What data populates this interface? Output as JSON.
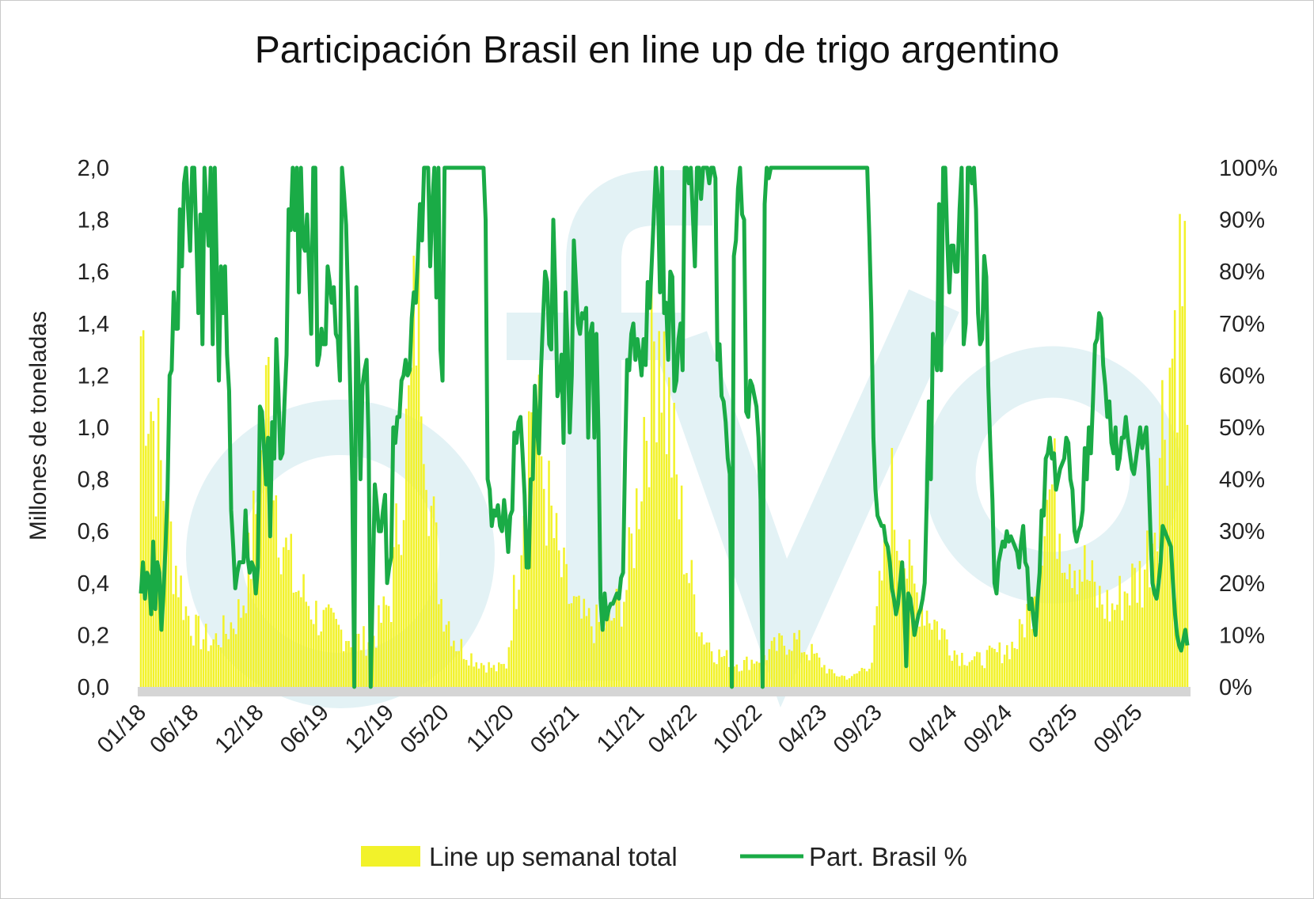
{
  "colors": {
    "bars": "#f2f22a",
    "line": "#1aab46",
    "baseline": "#d5d5d5",
    "watermark": "#e3f2f5"
  },
  "chart_data": {
    "type": "bar+line",
    "title": "Participación Brasil en line up de trigo argentino",
    "ylabel_left": "Millones de toneladas",
    "ylim_left": [
      0,
      2.0
    ],
    "yticks_left": [
      "0,0",
      "0,2",
      "0,4",
      "0,6",
      "0,8",
      "1,0",
      "1,2",
      "1,4",
      "1,6",
      "1,8",
      "2,0"
    ],
    "ylim_right": [
      0,
      100
    ],
    "yticks_right": [
      "0%",
      "10%",
      "20%",
      "30%",
      "40%",
      "50%",
      "60%",
      "70%",
      "80%",
      "90%",
      "100%"
    ],
    "xticks": [
      {
        "label": "01/18",
        "index": 0
      },
      {
        "label": "06/18",
        "index": 21
      },
      {
        "label": "12/18",
        "index": 47
      },
      {
        "label": "06/19",
        "index": 73
      },
      {
        "label": "12/19",
        "index": 99
      },
      {
        "label": "05/20",
        "index": 121
      },
      {
        "label": "11/20",
        "index": 147
      },
      {
        "label": "05/21",
        "index": 173
      },
      {
        "label": "11/21",
        "index": 199
      },
      {
        "label": "04/22",
        "index": 220
      },
      {
        "label": "10/22",
        "index": 246
      },
      {
        "label": "04/23",
        "index": 272
      },
      {
        "label": "09/23",
        "index": 294
      },
      {
        "label": "04/24",
        "index": 324
      },
      {
        "label": "09/24",
        "index": 346
      },
      {
        "label": "03/25",
        "index": 372
      },
      {
        "label": "09/25",
        "index": 398
      }
    ],
    "n_weeks": 419,
    "series": [
      {
        "name": "Line up semanal total",
        "type": "bar",
        "axis": "left",
        "unit": "millones de toneladas",
        "anchors": [
          [
            0,
            1.6
          ],
          [
            2,
            1.5
          ],
          [
            4,
            1.3
          ],
          [
            6,
            1.1
          ],
          [
            9,
            0.9
          ],
          [
            13,
            0.6
          ],
          [
            18,
            0.35
          ],
          [
            22,
            0.25
          ],
          [
            28,
            0.2
          ],
          [
            34,
            0.25
          ],
          [
            40,
            0.35
          ],
          [
            44,
            0.6
          ],
          [
            48,
            1.0
          ],
          [
            51,
            1.35
          ],
          [
            54,
            0.9
          ],
          [
            58,
            0.6
          ],
          [
            62,
            0.45
          ],
          [
            66,
            0.4
          ],
          [
            72,
            0.3
          ],
          [
            80,
            0.25
          ],
          [
            88,
            0.2
          ],
          [
            94,
            0.25
          ],
          [
            100,
            0.4
          ],
          [
            104,
            0.9
          ],
          [
            108,
            1.3
          ],
          [
            110,
            1.8
          ],
          [
            113,
            1.5
          ],
          [
            116,
            0.8
          ],
          [
            120,
            0.4
          ],
          [
            126,
            0.2
          ],
          [
            134,
            0.12
          ],
          [
            142,
            0.08
          ],
          [
            146,
            0.1
          ],
          [
            150,
            0.5
          ],
          [
            153,
            0.9
          ],
          [
            156,
            1.3
          ],
          [
            159,
            1.1
          ],
          [
            163,
            0.8
          ],
          [
            167,
            0.55
          ],
          [
            171,
            0.4
          ],
          [
            176,
            0.3
          ],
          [
            182,
            0.28
          ],
          [
            188,
            0.3
          ],
          [
            194,
            0.45
          ],
          [
            198,
            0.8
          ],
          [
            201,
            1.2
          ],
          [
            204,
            1.45
          ],
          [
            207,
            1.75
          ],
          [
            210,
            1.3
          ],
          [
            214,
            0.9
          ],
          [
            219,
            0.5
          ],
          [
            224,
            0.25
          ],
          [
            230,
            0.15
          ],
          [
            240,
            0.1
          ],
          [
            250,
            0.15
          ],
          [
            260,
            0.22
          ],
          [
            268,
            0.15
          ],
          [
            276,
            0.06
          ],
          [
            284,
            0.04
          ],
          [
            292,
            0.12
          ],
          [
            296,
            0.5
          ],
          [
            300,
            0.85
          ],
          [
            303,
            0.7
          ],
          [
            308,
            0.45
          ],
          [
            314,
            0.35
          ],
          [
            320,
            0.25
          ],
          [
            326,
            0.15
          ],
          [
            334,
            0.12
          ],
          [
            342,
            0.15
          ],
          [
            350,
            0.2
          ],
          [
            356,
            0.4
          ],
          [
            360,
            0.8
          ],
          [
            364,
            0.9
          ],
          [
            370,
            0.65
          ],
          [
            376,
            0.55
          ],
          [
            382,
            0.4
          ],
          [
            388,
            0.35
          ],
          [
            394,
            0.45
          ],
          [
            400,
            0.5
          ],
          [
            404,
            0.7
          ],
          [
            408,
            1.2
          ],
          [
            411,
            1.45
          ],
          [
            414,
            1.75
          ],
          [
            417,
            1.85
          ],
          [
            418,
            1.0
          ]
        ]
      },
      {
        "name": "Part. Brasil %",
        "type": "line",
        "axis": "right",
        "unit": "%",
        "values": [
          18,
          24,
          17,
          22,
          21,
          14,
          28,
          15,
          24,
          22,
          11,
          18,
          27,
          38,
          60,
          61,
          76,
          69,
          69,
          92,
          81,
          97,
          100,
          92,
          84,
          100,
          100,
          87,
          72,
          91,
          66,
          100,
          92,
          85,
          100,
          66,
          100,
          80,
          59,
          81,
          72,
          81,
          64,
          57,
          34,
          27,
          19,
          22,
          24,
          24,
          24,
          34,
          25,
          22,
          24,
          23,
          18,
          23,
          54,
          53,
          46,
          39,
          48,
          29,
          51,
          44,
          67,
          57,
          44,
          45,
          55,
          64,
          92,
          88,
          100,
          88,
          100,
          76,
          100,
          85,
          84,
          91,
          80,
          68,
          100,
          100,
          62,
          64,
          69,
          66,
          66,
          81,
          78,
          74,
          77,
          68,
          67,
          59,
          100,
          95,
          89,
          74,
          58,
          40,
          0,
          77,
          61,
          40,
          58,
          61,
          63,
          47,
          0,
          20,
          39,
          35,
          30,
          30,
          34,
          37,
          20,
          23,
          25,
          50,
          47,
          52,
          52,
          59,
          60,
          63,
          60,
          61,
          71,
          76,
          74,
          83,
          93,
          86,
          100,
          100,
          100,
          81,
          93,
          100,
          75,
          100,
          65,
          59,
          100,
          100,
          100,
          100,
          100,
          100,
          100,
          100,
          100,
          100,
          100,
          100,
          100,
          100,
          100,
          100,
          100,
          100,
          100,
          100,
          90,
          40,
          38,
          31,
          34,
          33,
          35,
          31,
          30,
          36,
          32,
          26,
          33,
          34,
          49,
          47,
          51,
          52,
          45,
          37,
          23,
          23,
          40,
          40,
          58,
          50,
          45,
          61,
          71,
          80,
          78,
          66,
          65,
          90,
          76,
          56,
          58,
          64,
          47,
          76,
          65,
          49,
          60,
          86,
          78,
          70,
          68,
          72,
          71,
          73,
          48,
          68,
          70,
          48,
          68,
          49,
          17,
          11,
          18,
          13,
          15,
          16,
          16,
          17,
          18,
          17,
          21,
          22,
          45,
          63,
          61,
          68,
          70,
          63,
          67,
          64,
          60,
          67,
          62,
          78,
          73,
          82,
          91,
          100,
          94,
          76,
          100,
          72,
          74,
          63,
          80,
          79,
          57,
          59,
          67,
          70,
          61,
          100,
          100,
          97,
          100,
          91,
          81,
          100,
          100,
          94,
          100,
          100,
          100,
          97,
          100,
          100,
          98,
          63,
          66,
          56,
          55,
          51,
          44,
          41,
          0,
          83,
          86,
          96,
          100,
          91,
          90,
          53,
          52,
          59,
          58,
          56,
          54,
          48,
          36,
          0,
          93,
          100,
          98,
          100,
          100,
          100,
          100,
          100,
          100,
          100,
          100,
          100,
          100,
          100,
          100,
          100,
          100,
          100,
          100,
          100,
          100,
          100,
          100,
          100,
          100,
          100,
          100,
          100,
          100,
          100,
          100,
          100,
          100,
          100,
          100,
          100,
          100,
          100,
          100,
          100,
          100,
          100,
          100,
          100,
          100,
          100,
          100,
          100,
          100,
          100,
          100,
          87,
          72,
          48,
          38,
          33,
          32,
          31,
          31,
          28,
          27,
          24,
          19,
          17,
          14,
          16,
          20,
          24,
          16,
          4,
          18,
          17,
          14,
          10,
          12,
          14,
          15,
          17,
          20,
          36,
          55,
          40,
          68,
          65,
          61,
          93,
          61,
          100,
          100,
          86,
          76,
          85,
          85,
          80,
          80,
          92,
          100,
          66,
          70,
          100,
          100,
          97,
          100,
          92,
          72,
          66,
          67,
          83,
          79,
          58,
          46,
          36,
          20,
          18,
          24,
          26,
          28,
          27,
          30,
          28,
          29,
          28,
          27,
          26,
          23,
          28,
          31,
          24,
          23,
          15,
          17,
          13,
          10,
          17,
          22,
          34,
          33,
          44,
          45,
          48,
          44,
          45,
          38,
          40,
          42,
          43,
          44,
          48,
          47,
          40,
          38,
          30,
          28,
          30,
          31,
          34,
          46,
          40,
          50,
          45,
          55,
          66,
          67,
          72,
          71,
          62,
          58,
          52,
          55,
          47,
          45,
          50,
          42,
          44,
          48,
          48,
          52,
          48,
          45,
          42,
          41,
          44,
          47,
          50,
          46,
          48,
          50,
          42,
          30,
          20,
          18,
          17,
          20,
          24,
          31,
          30,
          29,
          28,
          27,
          20,
          14,
          10,
          8,
          7,
          9,
          11,
          8
        ]
      }
    ],
    "legend": "bottom-center"
  }
}
